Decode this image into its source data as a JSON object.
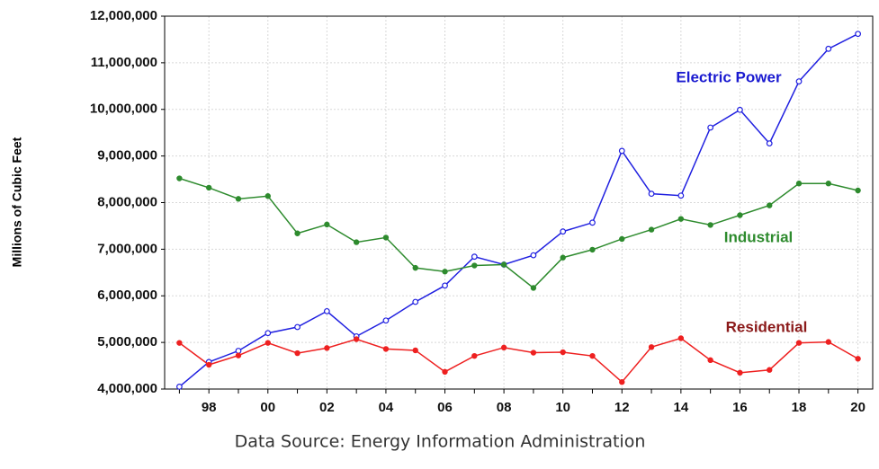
{
  "chart_data": {
    "type": "line",
    "y_label": "Millions of Cubic Feet",
    "source": "Data Source:  Energy Information Administration",
    "categories": [
      null,
      "98",
      null,
      "00",
      null,
      "02",
      null,
      "04",
      null,
      "06",
      null,
      "08",
      null,
      "10",
      null,
      "12",
      null,
      "14",
      null,
      "16",
      null,
      "18",
      null,
      "20"
    ],
    "series": [
      {
        "name": "Electric Power",
        "color": "#2020e0",
        "label_color": "#1a1ad0",
        "marker": "open",
        "values": [
          4050000,
          4580000,
          4820000,
          5200000,
          5330000,
          5670000,
          5130000,
          5470000,
          5870000,
          6220000,
          6840000,
          6670000,
          6870000,
          7380000,
          7570000,
          9110000,
          8190000,
          8150000,
          9610000,
          9990000,
          9270000,
          10600000,
          11300000,
          11620000
        ]
      },
      {
        "name": "Industrial",
        "color": "#2e8b2e",
        "label_color": "#2e8b2e",
        "marker": "filled",
        "values": [
          8520000,
          8320000,
          8080000,
          8140000,
          7340000,
          7530000,
          7150000,
          7250000,
          6600000,
          6520000,
          6650000,
          6670000,
          6170000,
          6820000,
          6990000,
          7220000,
          7420000,
          7650000,
          7520000,
          7730000,
          7940000,
          8410000,
          8410000,
          8260000
        ]
      },
      {
        "name": "Residential",
        "color": "#ee2020",
        "label_color": "#8b1a1a",
        "marker": "filled",
        "values": [
          4990000,
          4520000,
          4720000,
          4990000,
          4770000,
          4880000,
          5070000,
          4860000,
          4830000,
          4370000,
          4710000,
          4890000,
          4780000,
          4790000,
          4710000,
          4150000,
          4900000,
          5090000,
          4620000,
          4350000,
          4410000,
          4990000,
          5010000,
          4650000
        ]
      }
    ],
    "ylim": [
      4000000,
      12000000
    ],
    "yticks": [
      {
        "value": 4000000,
        "label": "4,000,000"
      },
      {
        "value": 5000000,
        "label": "5,000,000"
      },
      {
        "value": 6000000,
        "label": "6,000,000"
      },
      {
        "value": 7000000,
        "label": "7,000,000"
      },
      {
        "value": 8000000,
        "label": "8,000,000"
      },
      {
        "value": 9000000,
        "label": "9,000,000"
      },
      {
        "value": 10000000,
        "label": "10,000,000"
      },
      {
        "value": 11000000,
        "label": "11,000,000"
      },
      {
        "value": 12000000,
        "label": "12,000,000"
      }
    ],
    "grid": true
  }
}
